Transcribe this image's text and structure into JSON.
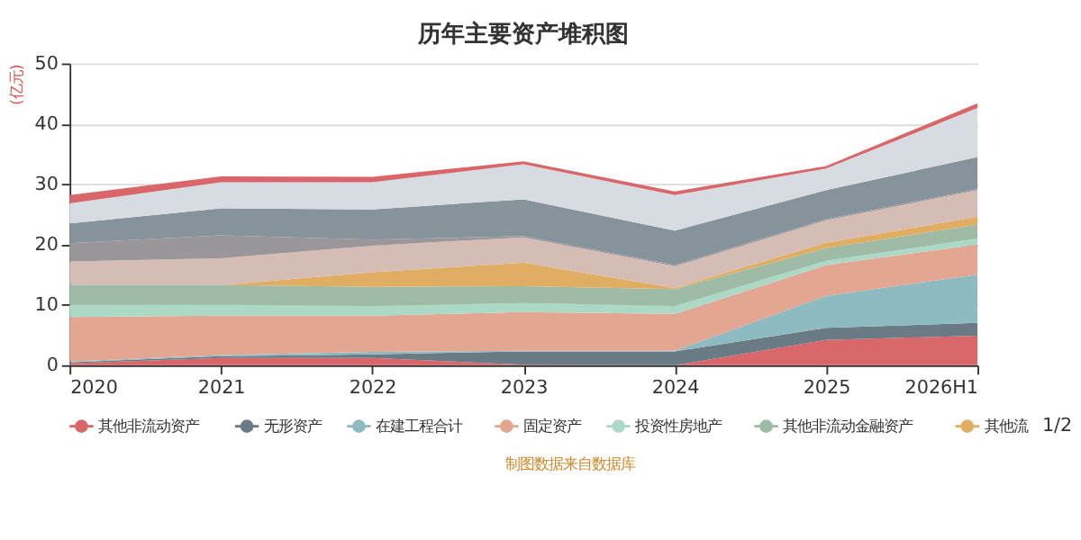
{
  "chart_data": {
    "type": "area",
    "stacked": true,
    "title": "历年主要资产堆积图",
    "ylabel": "(亿元)",
    "categories": [
      "2020",
      "2021",
      "2022",
      "2023",
      "2024",
      "2025",
      "2026H1"
    ],
    "ylim": [
      0,
      50
    ],
    "yticks": [
      0,
      10,
      20,
      30,
      40,
      50
    ],
    "grid": "y",
    "legend": "bottom",
    "series": [
      {
        "name": "其他非流动资产",
        "color": "#d9676a",
        "values": [
          0.3,
          1.2,
          1.2,
          0.1,
          0,
          4.2,
          4.9
        ]
      },
      {
        "name": "无形资产",
        "color": "#6b7b86",
        "values": [
          0.2,
          0.3,
          0.6,
          2.2,
          2.3,
          2.0,
          2.1
        ]
      },
      {
        "name": "在建工程合计",
        "color": "#8ebbc1",
        "values": [
          0.1,
          0.2,
          0.4,
          0.1,
          0.1,
          5.3,
          8.0
        ]
      },
      {
        "name": "固定资产",
        "color": "#e3a692",
        "values": [
          7.4,
          6.5,
          6.0,
          6.4,
          6.1,
          5.1,
          5.0
        ]
      },
      {
        "name": "投资性房地产",
        "color": "#acd9c6",
        "values": [
          2.0,
          1.8,
          1.6,
          1.5,
          1.3,
          0.7,
          1.0
        ]
      },
      {
        "name": "其他非流动金融资产",
        "color": "#9dbba5",
        "values": [
          3.3,
          3.3,
          3.2,
          2.8,
          2.8,
          2.1,
          2.3
        ]
      },
      {
        "name": "其他流",
        "color": "#dfae62",
        "values": [
          0,
          0,
          2.4,
          3.9,
          0.2,
          0.9,
          1.3
        ]
      },
      {
        "color": "#d5bcb5",
        "values": [
          3.9,
          4.4,
          4.4,
          4.2,
          3.6,
          3.7,
          4.4
        ]
      },
      {
        "color": "#9a9699",
        "values": [
          3.0,
          3.8,
          1.0,
          0.2,
          0.2,
          0.2,
          0.2
        ]
      },
      {
        "color": "#86939a",
        "values": [
          3.3,
          4.5,
          5.0,
          6.1,
          5.7,
          4.8,
          5.3
        ]
      },
      {
        "color": "#d7dce2",
        "values": [
          3.3,
          4.3,
          4.5,
          5.8,
          5.9,
          3.6,
          8.1
        ]
      },
      {
        "color": "#d9676a",
        "values": [
          1.4,
          1.0,
          0.9,
          0.5,
          0.6,
          0.4,
          0.8
        ]
      }
    ],
    "annotations": [
      "1/2",
      "制图数据来自数据库"
    ]
  }
}
